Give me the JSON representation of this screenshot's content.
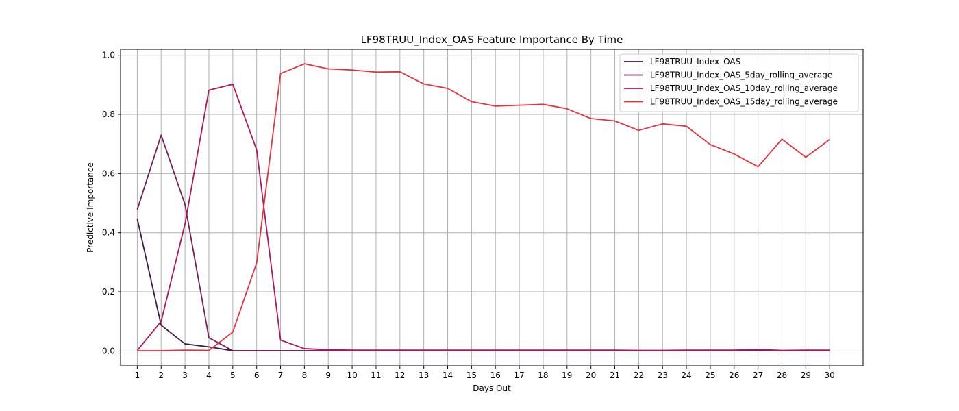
{
  "chart_data": {
    "type": "line",
    "title": "LF98TRUU_Index_OAS Feature Importance By Time",
    "xlabel": "Days Out",
    "ylabel": "Predictive Importance",
    "x": [
      1,
      2,
      3,
      4,
      5,
      6,
      7,
      8,
      9,
      10,
      11,
      12,
      13,
      14,
      15,
      16,
      17,
      18,
      19,
      20,
      21,
      22,
      23,
      24,
      25,
      26,
      27,
      28,
      29,
      30
    ],
    "xlim": [
      0.3,
      31.4
    ],
    "ylim": [
      -0.05,
      1.02
    ],
    "yticks": [
      0.0,
      0.2,
      0.4,
      0.6,
      0.8,
      1.0
    ],
    "ytick_labels": [
      "0.0",
      "0.2",
      "0.4",
      "0.6",
      "0.8",
      "1.0"
    ],
    "grid": true,
    "legend_position": "top-right",
    "series": [
      {
        "name": "LF98TRUU_Index_OAS",
        "color": "#3b1c3f",
        "values": [
          0.447,
          0.087,
          0.024,
          0.014,
          0.001,
          0.001,
          0.001,
          0.001,
          0.001,
          0.001,
          0.001,
          0.001,
          0.001,
          0.001,
          0.001,
          0.001,
          0.001,
          0.001,
          0.001,
          0.001,
          0.001,
          0.001,
          0.001,
          0.001,
          0.001,
          0.001,
          0.001,
          0.001,
          0.001,
          0.001
        ]
      },
      {
        "name": "LF98TRUU_Index_OAS_5day_rolling_average",
        "color": "#701f57",
        "values": [
          0.478,
          0.73,
          0.495,
          0.045,
          0.001,
          0.001,
          0.001,
          0.001,
          0.001,
          0.001,
          0.001,
          0.001,
          0.001,
          0.001,
          0.001,
          0.001,
          0.001,
          0.001,
          0.001,
          0.001,
          0.001,
          0.001,
          0.001,
          0.001,
          0.001,
          0.001,
          0.003,
          0.001,
          0.001,
          0.001
        ]
      },
      {
        "name": "LF98TRUU_Index_OAS_10day_rolling_average",
        "color": "#ad1759",
        "values": [
          0.002,
          0.1,
          0.43,
          0.882,
          0.902,
          0.68,
          0.037,
          0.008,
          0.004,
          0.003,
          0.003,
          0.003,
          0.003,
          0.003,
          0.003,
          0.003,
          0.003,
          0.003,
          0.003,
          0.003,
          0.003,
          0.002,
          0.002,
          0.003,
          0.003,
          0.003,
          0.005,
          0.002,
          0.003,
          0.003
        ]
      },
      {
        "name": "LF98TRUU_Index_OAS_15day_rolling_average",
        "color": "#e13342",
        "values": [
          0.001,
          0.001,
          0.003,
          0.002,
          0.064,
          0.298,
          0.938,
          0.971,
          0.954,
          0.95,
          0.943,
          0.944,
          0.903,
          0.888,
          0.843,
          0.828,
          0.831,
          0.834,
          0.819,
          0.786,
          0.778,
          0.746,
          0.768,
          0.76,
          0.698,
          0.666,
          0.623,
          0.716,
          0.655,
          0.715
        ]
      }
    ]
  }
}
